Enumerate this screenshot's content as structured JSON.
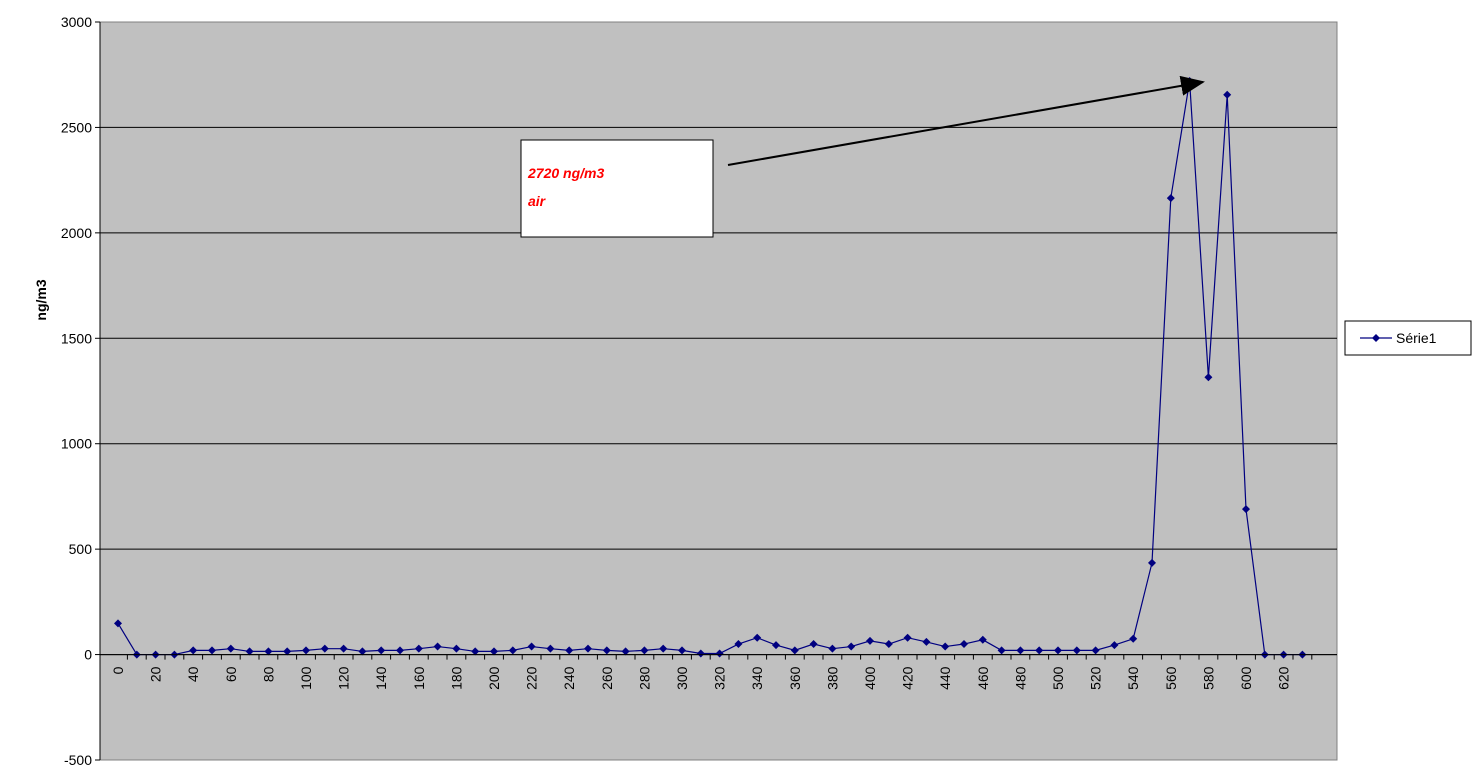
{
  "chart_data": {
    "type": "line",
    "y_label": "ng/m3",
    "annotation": [
      "2720  ng/m3",
      "air"
    ],
    "categories": [
      "0",
      null,
      "20",
      null,
      "40",
      null,
      "60",
      null,
      "80",
      null,
      "100",
      null,
      "120",
      null,
      "140",
      null,
      "160",
      null,
      "180",
      null,
      "200",
      null,
      "220",
      null,
      "240",
      null,
      "260",
      null,
      "280",
      null,
      "300",
      null,
      "320",
      null,
      "340",
      null,
      "360",
      null,
      "380",
      null,
      "400",
      null,
      "420",
      null,
      "440",
      null,
      "460",
      null,
      "480",
      null,
      "500",
      null,
      "520",
      null,
      "540",
      null,
      "560",
      null,
      "580",
      null,
      "600",
      null,
      "620",
      null
    ],
    "series": [
      {
        "name": "Série1",
        "color": "#000080",
        "values": [
          148,
          0,
          0,
          0,
          20,
          20,
          28,
          15,
          15,
          15,
          20,
          28,
          28,
          15,
          20,
          20,
          28,
          38,
          28,
          15,
          15,
          20,
          38,
          28,
          20,
          28,
          20,
          15,
          20,
          28,
          20,
          5,
          5,
          50,
          80,
          45,
          20,
          50,
          28,
          38,
          65,
          50,
          80,
          60,
          38,
          50,
          70,
          20,
          20,
          20,
          20,
          20,
          20,
          45,
          75,
          435,
          2165,
          2720,
          1315,
          2655,
          690,
          0,
          0,
          0
        ]
      }
    ],
    "ylim": [
      -500,
      3000
    ],
    "yticks": [
      -500,
      0,
      500,
      1000,
      1500,
      2000,
      2500,
      3000
    ],
    "grid": true,
    "legend": "right"
  }
}
